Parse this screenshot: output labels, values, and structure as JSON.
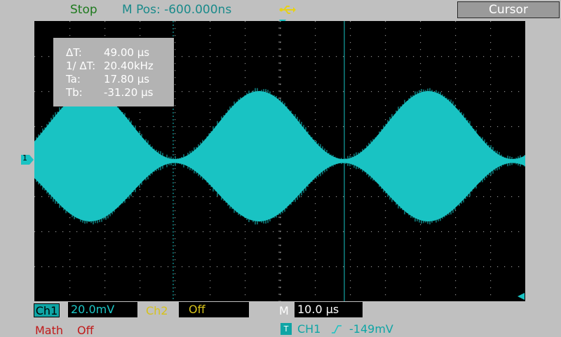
{
  "top": {
    "status": "Stop",
    "mpos": "M Pos: -600.000ns",
    "usb_icon": "usb-icon",
    "menu_title": "Cursor"
  },
  "cursor_readout": {
    "rows": [
      {
        "label": "ΔT:",
        "value": "49.00 µs"
      },
      {
        "label": "1/ ΔT:",
        "value": "20.40kHz"
      },
      {
        "label": "Ta:",
        "value": "17.80 µs"
      },
      {
        "label": "Tb:",
        "value": "-31.20 µs"
      }
    ]
  },
  "markers": {
    "ch1_marker": "1"
  },
  "bottom": {
    "ch1_label": "Ch1",
    "ch1_scale": "20.0mV",
    "ch2_label": "Ch2",
    "ch2_value": "Off",
    "m_label": "M",
    "m_value": "10.0 µs",
    "math_label": "Math",
    "math_value": "Off",
    "trig_icon": "T",
    "trig_source": "CH1",
    "trig_level": "-149mV"
  },
  "colors": {
    "trace": "#19c3c3",
    "screen_bg": "#000000",
    "panel_bg": "#c0c0c0",
    "status": "#1e7a1e",
    "math": "#c01a1a",
    "ch2": "#d6c21a"
  }
}
